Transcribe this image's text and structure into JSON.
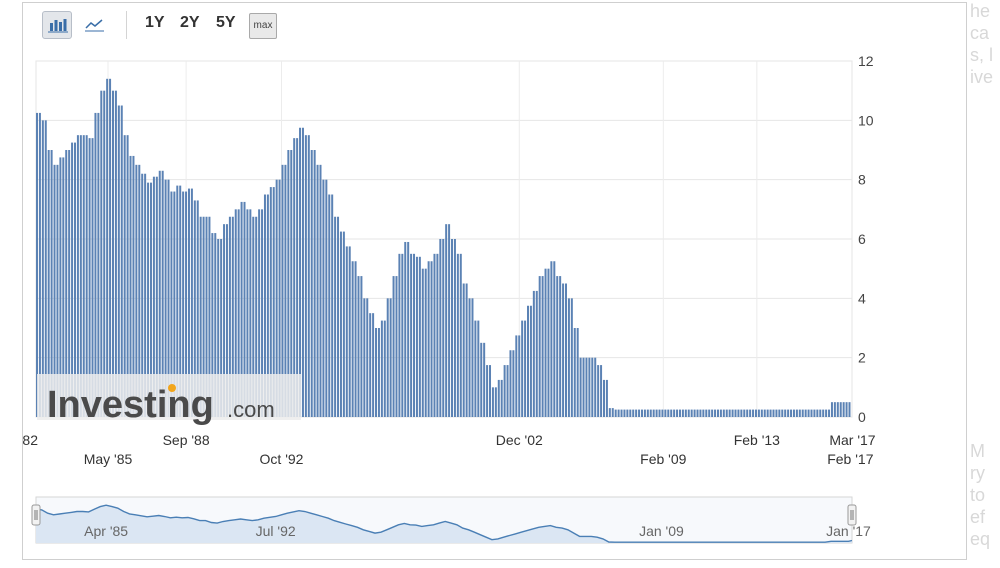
{
  "toolbar": {
    "bar_chart_button": "bar-chart",
    "line_chart_button": "line-chart",
    "ranges": [
      "1Y",
      "2Y",
      "5Y"
    ],
    "max_label": "max"
  },
  "watermark": {
    "text_main": "Investing",
    "text_suffix": ".com"
  },
  "colors": {
    "bar": "#5b82b4",
    "bar_edge": "#466c9e",
    "navigator_line": "#4a7fb5",
    "navigator_fill": "#dbe6f3"
  },
  "right_bleed_text": [
    "he",
    "ca",
    "s, l",
    "ive",
    "",
    "",
    "",
    "",
    "",
    "",
    "",
    "",
    "",
    "",
    "",
    "",
    "",
    "",
    "",
    "",
    "M",
    "ry",
    "to",
    "ef",
    "eq"
  ],
  "chart_data": {
    "type": "bar",
    "y_ticks": [
      "0",
      "2",
      "4",
      "6",
      "8",
      "10",
      "12"
    ],
    "ylim": [
      0,
      12
    ],
    "xlim": [
      1982.25,
      2017.15
    ],
    "x_labels_top": [
      {
        "label": "'82",
        "x": 1982.25
      },
      {
        "label": "Sep '88",
        "x": 1988.67
      },
      {
        "label": "Dec '02",
        "x": 2002.92
      },
      {
        "label": "Feb '13",
        "x": 2013.08
      },
      {
        "label": "Mar '17",
        "x": 2017.17
      }
    ],
    "x_labels_bottom": [
      {
        "label": "May '85",
        "x": 1985.33
      },
      {
        "label": "Oct '92",
        "x": 1992.75
      },
      {
        "label": "Feb '09",
        "x": 2009.08
      },
      {
        "label": "Feb '17",
        "x": 2017.08
      }
    ],
    "navigator_labels": [
      {
        "label": "Apr '85",
        "x": 1985.25
      },
      {
        "label": "Jul '92",
        "x": 1992.5
      },
      {
        "label": "Jan '09",
        "x": 2009.0
      },
      {
        "label": "Jan '17",
        "x": 2017.0
      }
    ],
    "points": [
      [
        1982.25,
        10.25
      ],
      [
        1982.5,
        10.0
      ],
      [
        1982.75,
        9.0
      ],
      [
        1983.0,
        8.5
      ],
      [
        1983.25,
        8.75
      ],
      [
        1983.5,
        9.0
      ],
      [
        1983.75,
        9.25
      ],
      [
        1984.0,
        9.5
      ],
      [
        1984.25,
        9.5
      ],
      [
        1984.5,
        9.4
      ],
      [
        1984.75,
        10.25
      ],
      [
        1985.0,
        11.0
      ],
      [
        1985.25,
        11.4
      ],
      [
        1985.5,
        11.0
      ],
      [
        1985.75,
        10.5
      ],
      [
        1986.0,
        9.5
      ],
      [
        1986.25,
        8.8
      ],
      [
        1986.5,
        8.5
      ],
      [
        1986.75,
        8.2
      ],
      [
        1987.0,
        7.9
      ],
      [
        1987.25,
        8.1
      ],
      [
        1987.5,
        8.3
      ],
      [
        1987.75,
        8.0
      ],
      [
        1988.0,
        7.6
      ],
      [
        1988.25,
        7.8
      ],
      [
        1988.5,
        7.6
      ],
      [
        1988.75,
        7.7
      ],
      [
        1989.0,
        7.3
      ],
      [
        1989.25,
        6.75
      ],
      [
        1989.5,
        6.75
      ],
      [
        1989.75,
        6.2
      ],
      [
        1990.0,
        6.0
      ],
      [
        1990.25,
        6.5
      ],
      [
        1990.5,
        6.75
      ],
      [
        1990.75,
        7.0
      ],
      [
        1991.0,
        7.25
      ],
      [
        1991.25,
        7.0
      ],
      [
        1991.5,
        6.75
      ],
      [
        1991.75,
        7.0
      ],
      [
        1992.0,
        7.5
      ],
      [
        1992.25,
        7.75
      ],
      [
        1992.5,
        8.0
      ],
      [
        1992.75,
        8.5
      ],
      [
        1993.0,
        9.0
      ],
      [
        1993.25,
        9.4
      ],
      [
        1993.5,
        9.75
      ],
      [
        1993.75,
        9.5
      ],
      [
        1994.0,
        9.0
      ],
      [
        1994.25,
        8.5
      ],
      [
        1994.5,
        8.0
      ],
      [
        1994.75,
        7.5
      ],
      [
        1995.0,
        6.75
      ],
      [
        1995.25,
        6.25
      ],
      [
        1995.5,
        5.75
      ],
      [
        1995.75,
        5.25
      ],
      [
        1996.0,
        4.75
      ],
      [
        1996.25,
        4.0
      ],
      [
        1996.5,
        3.5
      ],
      [
        1996.75,
        3.0
      ],
      [
        1997.0,
        3.25
      ],
      [
        1997.25,
        4.0
      ],
      [
        1997.5,
        4.75
      ],
      [
        1997.75,
        5.5
      ],
      [
        1998.0,
        5.9
      ],
      [
        1998.25,
        5.5
      ],
      [
        1998.5,
        5.4
      ],
      [
        1998.75,
        5.0
      ],
      [
        1999.0,
        5.25
      ],
      [
        1999.25,
        5.5
      ],
      [
        1999.5,
        6.0
      ],
      [
        1999.75,
        6.5
      ],
      [
        2000.0,
        6.0
      ],
      [
        2000.25,
        5.5
      ],
      [
        2000.5,
        4.5
      ],
      [
        2000.75,
        4.0
      ],
      [
        2001.0,
        3.25
      ],
      [
        2001.25,
        2.5
      ],
      [
        2001.5,
        1.75
      ],
      [
        2001.75,
        1.0
      ],
      [
        2002.0,
        1.25
      ],
      [
        2002.25,
        1.75
      ],
      [
        2002.5,
        2.25
      ],
      [
        2002.75,
        2.75
      ],
      [
        2003.0,
        3.25
      ],
      [
        2003.25,
        3.75
      ],
      [
        2003.5,
        4.25
      ],
      [
        2003.75,
        4.75
      ],
      [
        2004.0,
        5.0
      ],
      [
        2004.25,
        5.25
      ],
      [
        2004.5,
        4.75
      ],
      [
        2004.75,
        4.5
      ],
      [
        2005.0,
        4.0
      ],
      [
        2005.25,
        3.0
      ],
      [
        2005.5,
        2.0
      ],
      [
        2005.75,
        2.0
      ],
      [
        2006.0,
        2.0
      ],
      [
        2006.25,
        1.75
      ],
      [
        2006.5,
        1.25
      ],
      [
        2006.75,
        0.3
      ],
      [
        2007.0,
        0.25
      ],
      [
        2007.5,
        0.25
      ],
      [
        2008.0,
        0.25
      ],
      [
        2008.5,
        0.25
      ],
      [
        2009.0,
        0.25
      ],
      [
        2009.5,
        0.25
      ],
      [
        2010.0,
        0.25
      ],
      [
        2010.5,
        0.25
      ],
      [
        2011.0,
        0.25
      ],
      [
        2011.5,
        0.25
      ],
      [
        2012.0,
        0.25
      ],
      [
        2012.5,
        0.25
      ],
      [
        2013.0,
        0.25
      ],
      [
        2013.5,
        0.25
      ],
      [
        2014.0,
        0.25
      ],
      [
        2014.5,
        0.25
      ],
      [
        2015.0,
        0.25
      ],
      [
        2015.5,
        0.25
      ],
      [
        2016.0,
        0.25
      ],
      [
        2016.25,
        0.5
      ],
      [
        2016.5,
        0.5
      ],
      [
        2016.75,
        0.5
      ],
      [
        2017.0,
        0.5
      ],
      [
        2017.15,
        0.75
      ]
    ],
    "grid": true
  }
}
